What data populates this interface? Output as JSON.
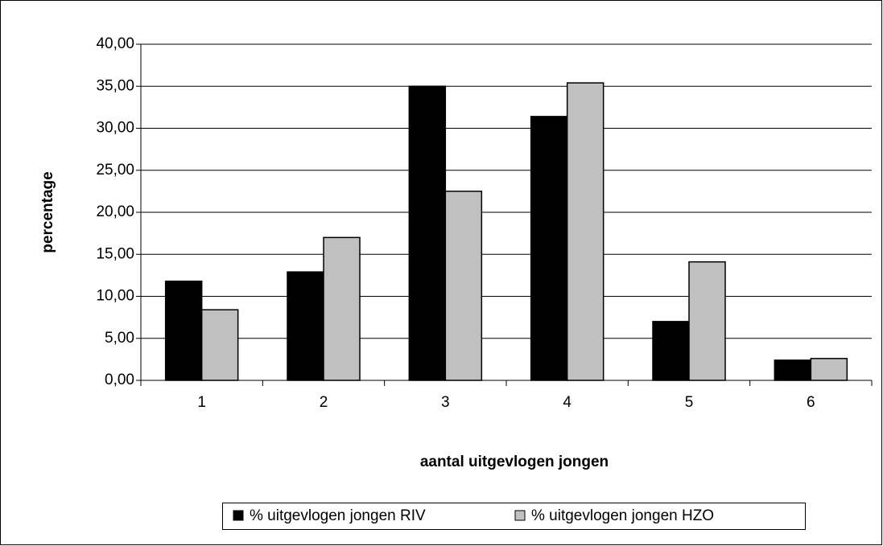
{
  "chart_data": {
    "type": "bar",
    "categories": [
      "1",
      "2",
      "3",
      "4",
      "5",
      "6"
    ],
    "series": [
      {
        "name": "% uitgevlogen jongen RIV",
        "color": "#000000",
        "values": [
          11.8,
          12.9,
          35.0,
          31.4,
          7.0,
          2.4
        ]
      },
      {
        "name": "% uitgevlogen jongen HZO",
        "color": "#c0c0c0",
        "values": [
          8.4,
          17.0,
          22.5,
          35.4,
          14.1,
          2.6
        ]
      }
    ],
    "x_label": "aantal uitgevlogen jongen",
    "y_label": "percentage",
    "ylim": [
      0,
      40
    ],
    "yticks": [
      {
        "value": 0,
        "label": "0,00"
      },
      {
        "value": 5,
        "label": "5,00"
      },
      {
        "value": 10,
        "label": "10,00"
      },
      {
        "value": 15,
        "label": "15,00"
      },
      {
        "value": 20,
        "label": "20,00"
      },
      {
        "value": 25,
        "label": "25,00"
      },
      {
        "value": 30,
        "label": "30,00"
      },
      {
        "value": 35,
        "label": "35,00"
      },
      {
        "value": 40,
        "label": "40,00"
      }
    ],
    "grid": true,
    "legend": "bottom"
  }
}
